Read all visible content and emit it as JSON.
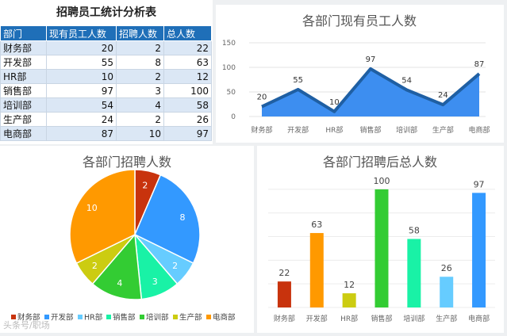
{
  "table": {
    "title": "招聘员工统计分析表",
    "headers": [
      "部门",
      "现有员工人数",
      "招聘人数",
      "总人数"
    ],
    "rows": [
      [
        "财务部",
        "20",
        "2",
        "22"
      ],
      [
        "开发部",
        "55",
        "8",
        "63"
      ],
      [
        "HR部",
        "10",
        "2",
        "12"
      ],
      [
        "销售部",
        "97",
        "3",
        "100"
      ],
      [
        "培训部",
        "54",
        "4",
        "58"
      ],
      [
        "生产部",
        "24",
        "2",
        "26"
      ],
      [
        "电商部",
        "87",
        "10",
        "97"
      ]
    ]
  },
  "chart_data": [
    {
      "type": "area",
      "title": "各部门现有员工人数",
      "categories": [
        "财务部",
        "开发部",
        "HR部",
        "销售部",
        "培训部",
        "生产部",
        "电商部"
      ],
      "values": [
        20,
        55,
        10,
        97,
        54,
        24,
        87
      ],
      "ylim": [
        0,
        150
      ],
      "yticks": [
        0,
        50,
        100,
        150
      ],
      "grid": true,
      "color": "#3d8ef0",
      "line_color": "#1f5fa3"
    },
    {
      "type": "pie",
      "title": "各部门招聘人数",
      "categories": [
        "财务部",
        "开发部",
        "HR部",
        "销售部",
        "培训部",
        "生产部",
        "电商部"
      ],
      "values": [
        2,
        8,
        2,
        3,
        4,
        2,
        10
      ],
      "colors": [
        "#c8330d",
        "#3399ff",
        "#66ccff",
        "#19f2a6",
        "#33cc33",
        "#cccc11",
        "#ff9900"
      ],
      "legend": "bottom"
    },
    {
      "type": "bar",
      "title": "各部门招聘后总人数",
      "categories": [
        "财务部",
        "开发部",
        "HR部",
        "销售部",
        "培训部",
        "生产部",
        "电商部"
      ],
      "values": [
        22,
        63,
        12,
        100,
        58,
        26,
        97
      ],
      "ylim": [
        0,
        110
      ],
      "colors": [
        "#c8330d",
        "#ff9900",
        "#cccc11",
        "#33cc33",
        "#19f2a6",
        "#66ccff",
        "#3399ff"
      ],
      "grid": true
    }
  ],
  "watermark": "头条号/职场"
}
